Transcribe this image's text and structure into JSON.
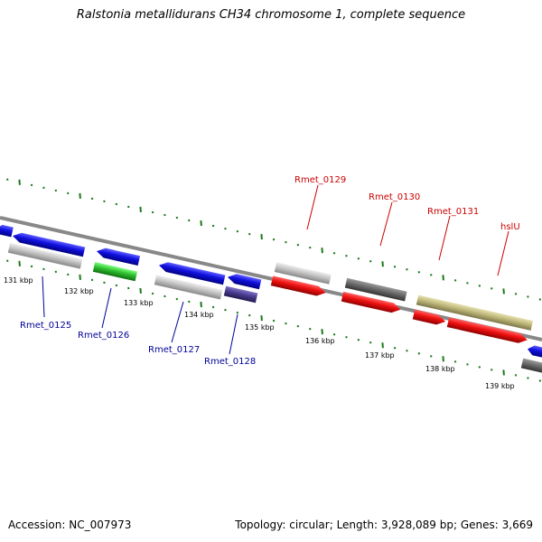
{
  "title": "Ralstonia metallidurans CH34 chromosome 1, complete sequence",
  "footer": {
    "accession_label": "Accession:",
    "accession": "NC_007973",
    "topology_label": "Topology:",
    "topology": "circular",
    "length_label": "Length:",
    "length": "3,928,089 bp",
    "genes_label": "Genes:",
    "genes": "3,669"
  },
  "colors": {
    "forward_label": "#cc0000",
    "reverse_label": "#000099",
    "tick": "#1a7a1a",
    "backbone": "#808080",
    "blue": "#1010e0",
    "red": "#ee1010",
    "green": "#30c030",
    "lightgray": "#c4c4c4",
    "darkgray": "#6a6a6a",
    "olive": "#bfb87a",
    "purple": "#4a3c90"
  },
  "ticks": [
    {
      "label": "131 kbp"
    },
    {
      "label": "132 kbp"
    },
    {
      "label": "133 kbp"
    },
    {
      "label": "134 kbp"
    },
    {
      "label": "135 kbp"
    },
    {
      "label": "136 kbp"
    },
    {
      "label": "137 kbp"
    },
    {
      "label": "138 kbp"
    },
    {
      "label": "139 kbp"
    }
  ],
  "forward_labels": [
    {
      "text": "Rmet_0129"
    },
    {
      "text": "Rmet_0130"
    },
    {
      "text": "Rmet_0131"
    },
    {
      "text": "hslU"
    }
  ],
  "reverse_labels": [
    {
      "text": "Rmet_0125"
    },
    {
      "text": "Rmet_0126"
    },
    {
      "text": "Rmet_0127"
    },
    {
      "text": "Rmet_0128"
    }
  ]
}
